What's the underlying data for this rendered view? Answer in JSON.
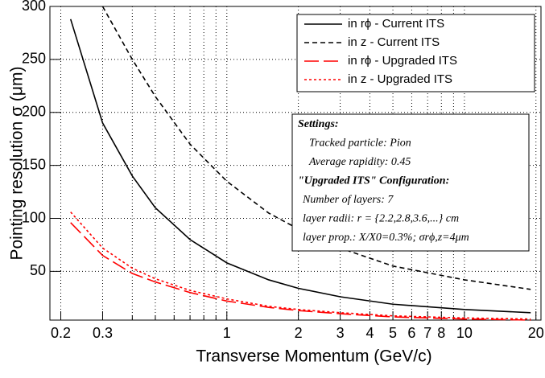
{
  "chart_data": {
    "type": "line",
    "xlabel": "Transverse Momentum (GeV/c)",
    "ylabel": "Pointing resolution σ (μm)",
    "x": [
      0.22,
      0.3,
      0.4,
      0.5,
      0.7,
      1,
      1.5,
      2,
      3,
      5,
      10,
      19
    ],
    "series": [
      {
        "name": "in rϕ - Current ITS",
        "color": "#000000",
        "dash": "solid",
        "values": [
          288,
          190,
          140,
          110,
          80,
          58,
          42,
          34,
          26,
          19,
          14,
          11
        ]
      },
      {
        "name": "in z  - Current ITS",
        "color": "#000000",
        "dash": "short",
        "values": [
          null,
          300,
          250,
          215,
          170,
          135,
          105,
          90,
          72,
          55,
          42,
          33
        ]
      },
      {
        "name": "in rϕ - Upgraded ITS",
        "color": "#ff0000",
        "dash": "long",
        "values": [
          96,
          65,
          48,
          40,
          30,
          22,
          16,
          13,
          10,
          7,
          5,
          4
        ]
      },
      {
        "name": "in z  - Upgraded ITS",
        "color": "#ff0000",
        "dash": "dot",
        "values": [
          106,
          72,
          53,
          43,
          32,
          24,
          17,
          14,
          11,
          8,
          6,
          5
        ]
      }
    ],
    "xlim": [
      0.18,
      21
    ],
    "ylim": [
      4,
      300
    ],
    "log_x": true,
    "xticks": [
      0.2,
      0.3,
      1,
      2,
      3,
      4,
      5,
      6,
      7,
      8,
      10,
      20
    ],
    "xgrid_minor": [
      0.4,
      0.5,
      0.6,
      0.7,
      0.8,
      0.9,
      9
    ],
    "yticks": [
      50,
      100,
      150,
      200,
      250,
      300
    ],
    "grid": true,
    "settings": [
      "Settings:",
      "Tracked particle: Pion",
      "Average rapidity: 0.45",
      "\"Upgraded ITS\" Configuration:",
      "Number of layers: 7",
      "layer radii: r = {2.2,2.8,3.6,...} cm",
      "layer prop.: X/X0=0.3%; σrϕ,z=4μm"
    ]
  }
}
